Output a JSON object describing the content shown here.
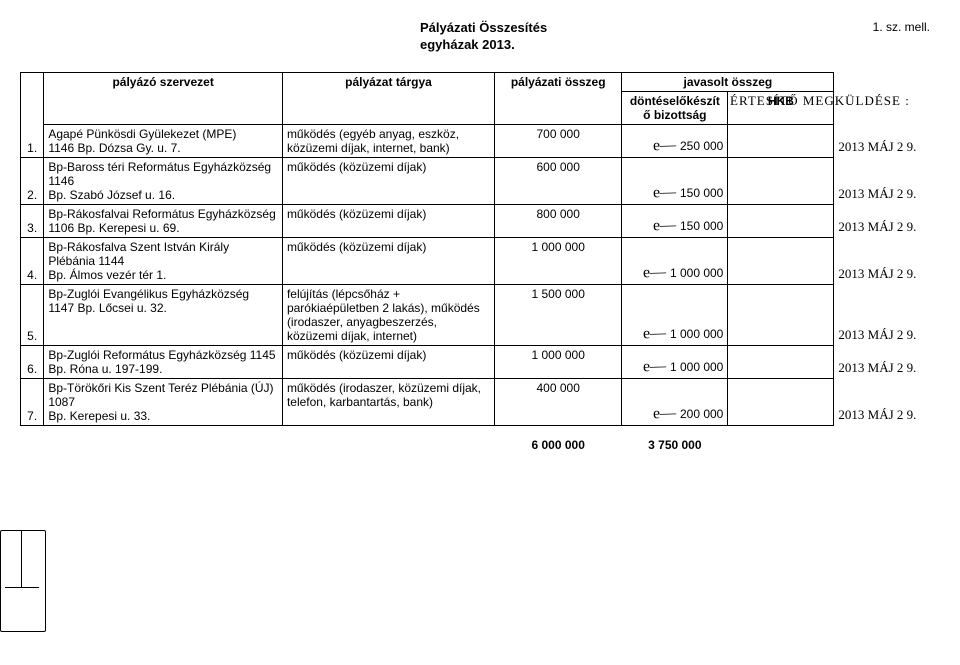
{
  "title1": "Pályázati Összesítés",
  "title2": "egyházak 2013.",
  "page_num": "1. sz. mell.",
  "side_note": "ÉRTESÍTŐ MEGKÜLDÉSE :",
  "headers": {
    "num": "",
    "org": "pályázó szervezet",
    "subj": "pályázat tárgya",
    "amt": "pályázati összeg",
    "group": "javasolt összeg",
    "biz": "döntéselőkészítő bizottság",
    "hkb": "HKB"
  },
  "rows": [
    {
      "n": "1.",
      "org": "Agapé Pünkösdi Gyülekezet (MPE)\n1146 Bp. Dózsa Gy. u. 7.",
      "subj": "működés (egyéb anyag, eszköz, közüzemi díjak, internet, bank)",
      "amt": "700 000",
      "biz": "250 000",
      "date": "2013 MÁJ 2 9."
    },
    {
      "n": "2.",
      "org": "Bp-Baross téri Református Egyházközség              1146\nBp. Szabó József u. 16.",
      "subj": "működés (közüzemi díjak)",
      "amt": "600 000",
      "biz": "150 000",
      "date": "2013 MÁJ 2 9."
    },
    {
      "n": "3.",
      "org": "Bp-Rákosfalvai Református Egyházközség\n1106 Bp. Kerepesi u. 69.",
      "subj": "működés (közüzemi díjak)",
      "amt": "800 000",
      "biz": "150 000",
      "date": "2013 MÁJ 2 9."
    },
    {
      "n": "4.",
      "org": "Bp-Rákosfalva Szent István Király Plébánia              1144\nBp. Álmos vezér tér 1.",
      "subj": "működés (közüzemi díjak)",
      "amt": "1 000 000",
      "biz": "1 000 000",
      "date": "2013 MÁJ 2 9."
    },
    {
      "n": "5.",
      "org": "Bp-Zuglói Evangélikus Egyházközség\n1147 Bp. Lőcsei u. 32.",
      "subj": "felújítás (lépcsőház + parókiaépületben 2 lakás), működés (irodaszer, anyagbeszerzés, közüzemi díjak, internet)",
      "amt": "1 500 000",
      "biz": "1 000 000",
      "date": "2013 MÁJ 2 9."
    },
    {
      "n": "6.",
      "org": "Bp-Zuglói Református Egyházközség              1145\nBp. Róna u. 197-199.",
      "subj": "működés (közüzemi díjak)",
      "amt": "1 000 000",
      "biz": "1 000 000",
      "date": "2013 MÁJ 2 9."
    },
    {
      "n": "7.",
      "org": "Bp-Törökőri Kis Szent Teréz Plébánia (ÚJ)              1087\nBp. Kerepesi u. 33.",
      "subj": "működés (irodaszer, közüzemi díjak, telefon, karbantartás, bank)",
      "amt": "400 000",
      "biz": "200 000",
      "date": "2013 MÁJ 2 9."
    }
  ],
  "totals": {
    "amt": "6 000 000",
    "biz": "3 750 000"
  }
}
